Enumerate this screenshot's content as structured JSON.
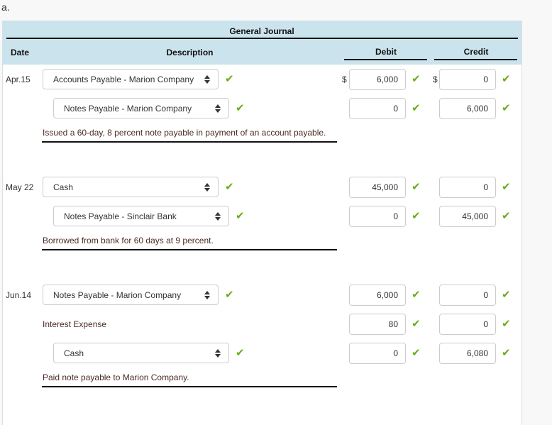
{
  "part_label": "a.",
  "journal": {
    "title": "General Journal",
    "col_date": "Date",
    "col_description": "Description",
    "col_debit": "Debit",
    "col_credit": "Credit",
    "currency_symbol": "$",
    "check_color": "#6aac1a",
    "entries": [
      {
        "date": "Apr.15",
        "lines": [
          {
            "account": "Accounts Payable - Marion Company",
            "type": "select",
            "indent": false,
            "debit": "6,000",
            "credit": "0",
            "account_check": true
          },
          {
            "account": "Notes Payable - Marion Company",
            "type": "select",
            "indent": true,
            "debit": "0",
            "credit": "6,000",
            "account_check": true
          }
        ],
        "description": "Issued a 60-day, 8 percent note payable in payment of an account payable."
      },
      {
        "date": "May 22",
        "lines": [
          {
            "account": "Cash",
            "type": "select",
            "indent": false,
            "debit": "45,000",
            "credit": "0",
            "account_check": true
          },
          {
            "account": "Notes Payable - Sinclair Bank",
            "type": "select",
            "indent": true,
            "debit": "0",
            "credit": "45,000",
            "account_check": true
          }
        ],
        "description": "Borrowed from bank for 60 days at 9 percent."
      },
      {
        "date": "Jun.14",
        "lines": [
          {
            "account": "Notes Payable - Marion Company",
            "type": "select",
            "indent": false,
            "debit": "6,000",
            "credit": "0",
            "account_check": true
          },
          {
            "account": "Interest Expense",
            "type": "text",
            "indent": false,
            "debit": "80",
            "credit": "0",
            "account_check": false
          },
          {
            "account": "Cash",
            "type": "select",
            "indent": true,
            "debit": "0",
            "credit": "6,080",
            "account_check": true
          }
        ],
        "description": "Paid note payable to Marion Company."
      }
    ]
  }
}
